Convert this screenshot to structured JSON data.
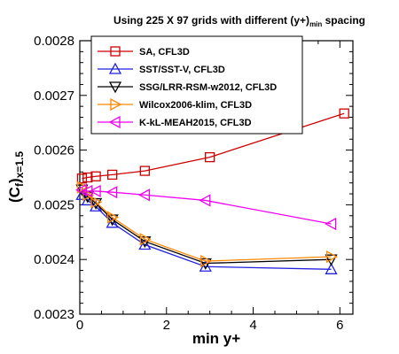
{
  "chart_data": {
    "type": "line",
    "title": "Using 225 X 97 grids with different (y+)min spacing",
    "title_parts": {
      "main": "Using 225 X 97 grids with different (y+)",
      "sub": "min",
      "tail": " spacing"
    },
    "xlabel": "min y+",
    "ylabel": "(Cf)x=1.5",
    "ylabel_parts": {
      "open": "(C",
      "sub1": "f",
      "close": ")",
      "sub2": "x=1.5"
    },
    "xlim": [
      0,
      6.3
    ],
    "ylim": [
      0.0023,
      0.0028
    ],
    "xticks": [
      0,
      2,
      4,
      6
    ],
    "xtick_labels": [
      "0",
      "2",
      "4",
      "6"
    ],
    "yticks": [
      0.0023,
      0.0024,
      0.0025,
      0.0026,
      0.0027,
      0.0028
    ],
    "ytick_labels": [
      "0.0023",
      "0.0024",
      "0.0025",
      "0.0026",
      "0.0027",
      "0.0028"
    ],
    "grid": false,
    "legend_position": "top-right",
    "series": [
      {
        "name": "SA, CFL3D",
        "color": "#cc0000",
        "marker": "square",
        "x": [
          0.05,
          0.18,
          0.37,
          0.75,
          1.5,
          3.0,
          6.1
        ],
        "y": [
          0.002548,
          0.00255,
          0.002552,
          0.002555,
          0.002562,
          0.002587,
          0.002667
        ]
      },
      {
        "name": "SST/SST-V, CFL3D",
        "color": "#2222dd",
        "marker": "triangle-up",
        "x": [
          0.05,
          0.18,
          0.37,
          0.75,
          1.5,
          2.9,
          5.8
        ],
        "y": [
          0.002518,
          0.002508,
          0.002497,
          0.002467,
          0.002427,
          0.002387,
          0.002382
        ]
      },
      {
        "name": "SSG/LRR-RSM-w2012, CFL3D",
        "color": "#000000",
        "marker": "triangle-down",
        "x": [
          0.05,
          0.18,
          0.37,
          0.75,
          1.5,
          2.9,
          5.8
        ],
        "y": [
          0.002528,
          0.002515,
          0.002503,
          0.002473,
          0.002433,
          0.002393,
          0.0024
        ]
      },
      {
        "name": "Wilcox2006-klim, CFL3D",
        "color": "#ff8800",
        "marker": "triangle-right",
        "x": [
          0.05,
          0.18,
          0.37,
          0.75,
          1.5,
          2.9,
          5.8
        ],
        "y": [
          0.002532,
          0.002518,
          0.002505,
          0.002477,
          0.002437,
          0.002397,
          0.002405
        ]
      },
      {
        "name": "K-kL-MEAH2015, CFL3D",
        "color": "#ee00ee",
        "marker": "triangle-left",
        "x": [
          0.05,
          0.18,
          0.37,
          0.75,
          1.5,
          2.9,
          5.8
        ],
        "y": [
          0.002527,
          0.002525,
          0.002525,
          0.002523,
          0.002518,
          0.002508,
          0.002465
        ]
      }
    ]
  }
}
